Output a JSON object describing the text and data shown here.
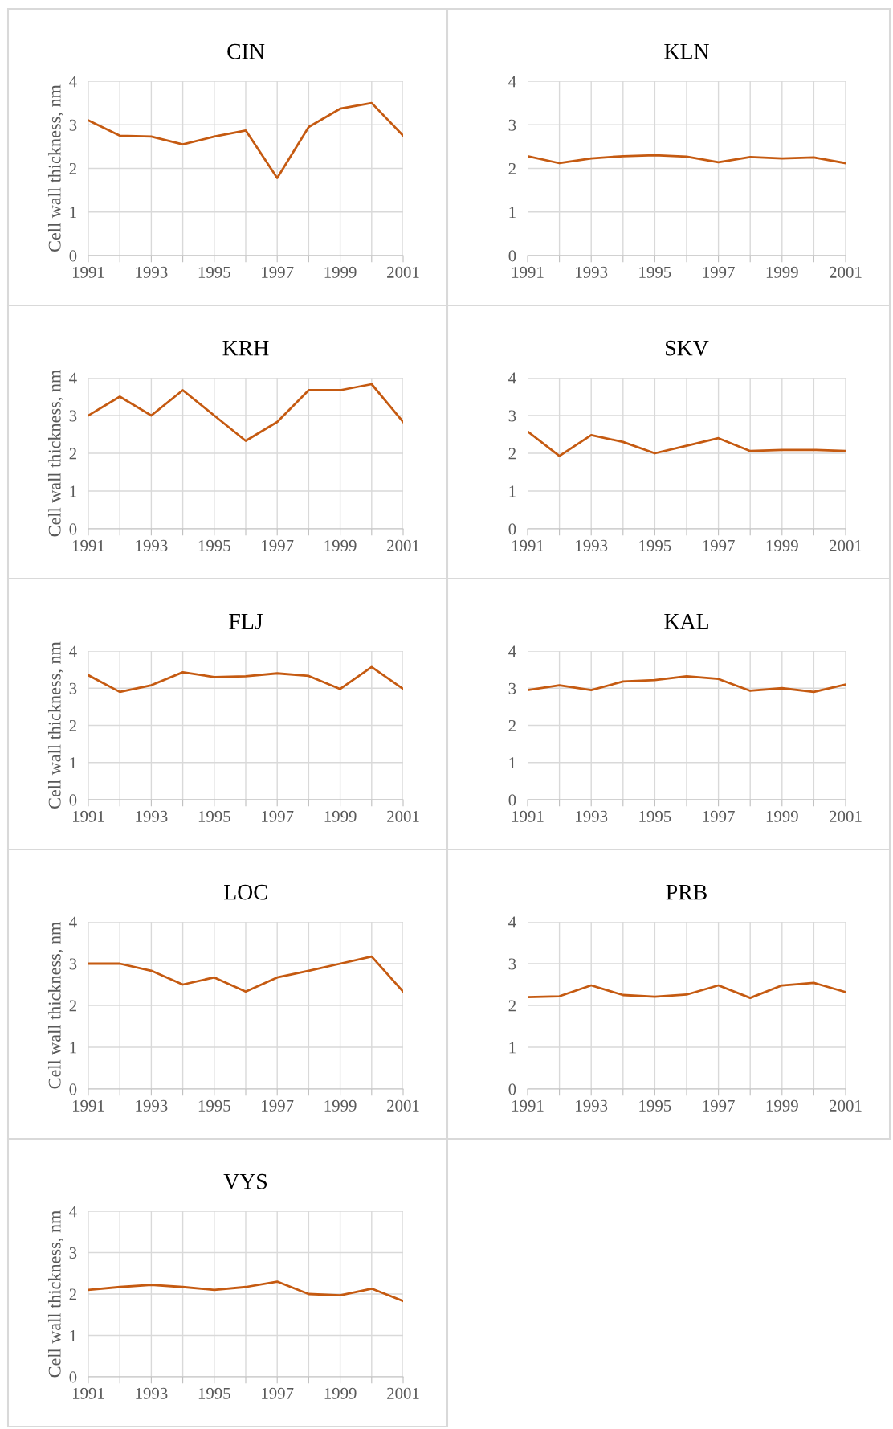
{
  "chart_data": [
    {
      "type": "line",
      "title": "CIN",
      "ylabel": "Cell wall thickness, nm",
      "x": [
        1991,
        1992,
        1993,
        1994,
        1995,
        1996,
        1997,
        1998,
        1999,
        2000,
        2001
      ],
      "series": [
        {
          "color": "#c55a11",
          "values": [
            3.1,
            2.75,
            2.73,
            2.55,
            2.73,
            2.87,
            1.78,
            2.95,
            3.37,
            3.5,
            2.75
          ]
        }
      ],
      "xlim": [
        1991,
        2001
      ],
      "xticks": [
        1991,
        {
          "value": 1992,
          "label": null
        },
        1993,
        {
          "value": 1994,
          "label": null
        },
        1995,
        {
          "value": 1996,
          "label": null
        },
        1997,
        {
          "value": 1998,
          "label": null
        },
        1999,
        {
          "value": 2000,
          "label": null
        },
        2001
      ],
      "ylim": [
        0,
        4
      ],
      "yticks": [
        0,
        1,
        2,
        3,
        4
      ],
      "grid": true
    },
    {
      "type": "line",
      "title": "KLN",
      "x": [
        1991,
        1992,
        1993,
        1994,
        1995,
        1996,
        1997,
        1998,
        1999,
        2000,
        2001
      ],
      "series": [
        {
          "color": "#c55a11",
          "values": [
            2.28,
            2.12,
            2.23,
            2.28,
            2.3,
            2.27,
            2.14,
            2.26,
            2.23,
            2.25,
            2.12
          ]
        }
      ],
      "xlim": [
        1991,
        2001
      ],
      "xticks": [
        1991,
        {
          "value": 1992,
          "label": null
        },
        1993,
        {
          "value": 1994,
          "label": null
        },
        1995,
        {
          "value": 1996,
          "label": null
        },
        1997,
        {
          "value": 1998,
          "label": null
        },
        1999,
        {
          "value": 2000,
          "label": null
        },
        2001
      ],
      "ylim": [
        0,
        4
      ],
      "yticks": [
        0,
        1,
        2,
        3,
        4
      ],
      "grid": true
    },
    {
      "type": "line",
      "title": "KRH",
      "ylabel": "Cell wall thickness, nm",
      "x": [
        1991,
        1992,
        1993,
        1994,
        1995,
        1996,
        1997,
        1998,
        1999,
        2000,
        2001
      ],
      "series": [
        {
          "color": "#c55a11",
          "values": [
            3.0,
            3.5,
            3.0,
            3.67,
            3.0,
            2.33,
            2.83,
            3.67,
            3.67,
            3.83,
            2.83
          ]
        }
      ],
      "xlim": [
        1991,
        2001
      ],
      "xticks": [
        1991,
        {
          "value": 1992,
          "label": null
        },
        1993,
        {
          "value": 1994,
          "label": null
        },
        1995,
        {
          "value": 1996,
          "label": null
        },
        1997,
        {
          "value": 1998,
          "label": null
        },
        1999,
        {
          "value": 2000,
          "label": null
        },
        2001
      ],
      "ylim": [
        0,
        4
      ],
      "yticks": [
        0,
        1,
        2,
        3,
        4
      ],
      "grid": true
    },
    {
      "type": "line",
      "title": "SKV",
      "x": [
        1991,
        1992,
        1993,
        1994,
        1995,
        1996,
        1997,
        1998,
        1999,
        2000,
        2001
      ],
      "series": [
        {
          "color": "#c55a11",
          "values": [
            2.58,
            1.93,
            2.48,
            2.3,
            2.0,
            2.2,
            2.4,
            2.06,
            2.09,
            2.09,
            2.06
          ]
        }
      ],
      "xlim": [
        1991,
        2001
      ],
      "xticks": [
        1991,
        {
          "value": 1992,
          "label": null
        },
        1993,
        {
          "value": 1994,
          "label": null
        },
        1995,
        {
          "value": 1996,
          "label": null
        },
        1997,
        {
          "value": 1998,
          "label": null
        },
        1999,
        {
          "value": 2000,
          "label": null
        },
        2001
      ],
      "ylim": [
        0,
        4
      ],
      "yticks": [
        0,
        1,
        2,
        3,
        4
      ],
      "grid": true
    },
    {
      "type": "line",
      "title": "FLJ",
      "ylabel": "Cell wall thickness, nm",
      "x": [
        1991,
        1992,
        1993,
        1994,
        1995,
        1996,
        1997,
        1998,
        1999,
        2000,
        2001
      ],
      "series": [
        {
          "color": "#c55a11",
          "values": [
            3.35,
            2.9,
            3.08,
            3.43,
            3.3,
            3.32,
            3.4,
            3.33,
            2.98,
            3.57,
            2.98
          ]
        }
      ],
      "xlim": [
        1991,
        2001
      ],
      "xticks": [
        1991,
        {
          "value": 1992,
          "label": null
        },
        1993,
        {
          "value": 1994,
          "label": null
        },
        1995,
        {
          "value": 1996,
          "label": null
        },
        1997,
        {
          "value": 1998,
          "label": null
        },
        1999,
        {
          "value": 2000,
          "label": null
        },
        2001
      ],
      "ylim": [
        0,
        4
      ],
      "yticks": [
        0,
        1,
        2,
        3,
        4
      ],
      "grid": true
    },
    {
      "type": "line",
      "title": "KAL",
      "x": [
        1991,
        1992,
        1993,
        1994,
        1995,
        1996,
        1997,
        1998,
        1999,
        2000,
        2001
      ],
      "series": [
        {
          "color": "#c55a11",
          "values": [
            2.95,
            3.08,
            2.95,
            3.18,
            3.22,
            3.32,
            3.25,
            2.93,
            3.0,
            2.9,
            3.1
          ]
        }
      ],
      "xlim": [
        1991,
        2001
      ],
      "xticks": [
        1991,
        {
          "value": 1992,
          "label": null
        },
        1993,
        {
          "value": 1994,
          "label": null
        },
        1995,
        {
          "value": 1996,
          "label": null
        },
        1997,
        {
          "value": 1998,
          "label": null
        },
        1999,
        {
          "value": 2000,
          "label": null
        },
        2001
      ],
      "ylim": [
        0,
        4
      ],
      "yticks": [
        0,
        1,
        2,
        3,
        4
      ],
      "grid": true
    },
    {
      "type": "line",
      "title": "LOC",
      "ylabel": "Cell wall thickness, nm",
      "x": [
        1991,
        1992,
        1993,
        1994,
        1995,
        1996,
        1997,
        1998,
        1999,
        2000,
        2001
      ],
      "series": [
        {
          "color": "#c55a11",
          "values": [
            3.0,
            3.0,
            2.83,
            2.5,
            2.67,
            2.33,
            2.67,
            2.83,
            3.0,
            3.17,
            2.33
          ]
        }
      ],
      "xlim": [
        1991,
        2001
      ],
      "xticks": [
        1991,
        {
          "value": 1992,
          "label": null
        },
        1993,
        {
          "value": 1994,
          "label": null
        },
        1995,
        {
          "value": 1996,
          "label": null
        },
        1997,
        {
          "value": 1998,
          "label": null
        },
        1999,
        {
          "value": 2000,
          "label": null
        },
        2001
      ],
      "ylim": [
        0,
        4
      ],
      "yticks": [
        0,
        1,
        2,
        3,
        4
      ],
      "grid": true
    },
    {
      "type": "line",
      "title": "PRB",
      "x": [
        1991,
        1992,
        1993,
        1994,
        1995,
        1996,
        1997,
        1998,
        1999,
        2000,
        2001
      ],
      "series": [
        {
          "color": "#c55a11",
          "values": [
            2.2,
            2.22,
            2.48,
            2.25,
            2.21,
            2.26,
            2.48,
            2.18,
            2.48,
            2.54,
            2.32
          ]
        }
      ],
      "xlim": [
        1991,
        2001
      ],
      "xticks": [
        1991,
        {
          "value": 1992,
          "label": null
        },
        1993,
        {
          "value": 1994,
          "label": null
        },
        1995,
        {
          "value": 1996,
          "label": null
        },
        1997,
        {
          "value": 1998,
          "label": null
        },
        1999,
        {
          "value": 2000,
          "label": null
        },
        2001
      ],
      "ylim": [
        0,
        4
      ],
      "yticks": [
        0,
        1,
        2,
        3,
        4
      ],
      "grid": true
    },
    {
      "type": "line",
      "title": "VYS",
      "ylabel": "Cell wall thickness, nm",
      "x": [
        1991,
        1992,
        1993,
        1994,
        1995,
        1996,
        1997,
        1998,
        1999,
        2000,
        2001
      ],
      "series": [
        {
          "color": "#c55a11",
          "values": [
            2.1,
            2.17,
            2.22,
            2.17,
            2.1,
            2.17,
            2.3,
            2.0,
            1.97,
            2.13,
            1.83
          ]
        }
      ],
      "xlim": [
        1991,
        2001
      ],
      "xticks": [
        1991,
        {
          "value": 1992,
          "label": null
        },
        1993,
        {
          "value": 1994,
          "label": null
        },
        1995,
        {
          "value": 1996,
          "label": null
        },
        1997,
        {
          "value": 1998,
          "label": null
        },
        1999,
        {
          "value": 2000,
          "label": null
        },
        2001
      ],
      "ylim": [
        0,
        4
      ],
      "yticks": [
        0,
        1,
        2,
        3,
        4
      ],
      "grid": true
    }
  ]
}
